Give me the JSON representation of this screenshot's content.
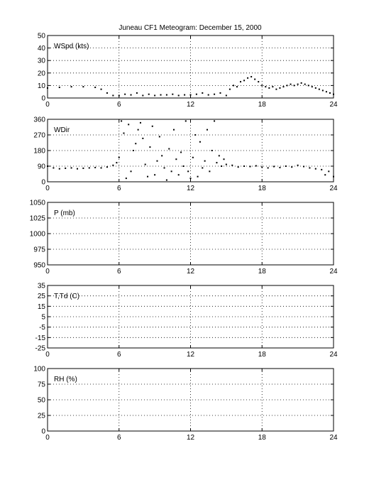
{
  "title": "Juneau CF1 Meteogram:   December 15, 2000",
  "chart_data": [
    {
      "type": "scatter",
      "label": "WSpd (kts)",
      "xlim": [
        0,
        24
      ],
      "ylim": [
        0,
        50
      ],
      "xticks": [
        "0",
        "6",
        "12",
        "18",
        "24"
      ],
      "yticks": [
        "0",
        "10",
        "20",
        "30",
        "40",
        "50"
      ],
      "grid": true,
      "x": [
        0,
        1,
        2,
        3,
        4,
        4.5,
        5,
        5.5,
        6,
        6.5,
        7,
        7.5,
        8,
        8.5,
        9,
        9.5,
        10,
        10.5,
        11,
        11.5,
        12,
        12.5,
        13,
        13.5,
        14,
        14.5,
        15,
        15.3,
        15.6,
        15.9,
        16.2,
        16.5,
        16.8,
        17.1,
        17.4,
        17.7,
        18,
        18.3,
        18.6,
        18.9,
        19.2,
        19.5,
        19.8,
        20.1,
        20.4,
        20.7,
        21,
        21.3,
        21.6,
        21.9,
        22.2,
        22.5,
        22.8,
        23.1,
        23.4,
        23.7,
        24
      ],
      "y": [
        8,
        8.5,
        9,
        9,
        8.5,
        7,
        4,
        2,
        2,
        3,
        2.5,
        4,
        2,
        3,
        2,
        2.5,
        2.5,
        3,
        2,
        2.5,
        2.5,
        3,
        4,
        2.5,
        3,
        4,
        2,
        7,
        10,
        9,
        13,
        14,
        16,
        17,
        15,
        13,
        10,
        9,
        8,
        9,
        7,
        8,
        9,
        10,
        11,
        10,
        11,
        12,
        11,
        10,
        9,
        8,
        7,
        6,
        5,
        4,
        3
      ]
    },
    {
      "type": "scatter",
      "label": "WDir",
      "xlim": [
        0,
        24
      ],
      "ylim": [
        0,
        360
      ],
      "xticks": [
        "0",
        "6",
        "12",
        "18",
        "24"
      ],
      "yticks": [
        "0",
        "90",
        "180",
        "270",
        "360"
      ],
      "grid": true,
      "x": [
        0,
        0.5,
        1,
        1.5,
        2,
        2.5,
        3,
        3.5,
        4,
        4.5,
        5,
        5.5,
        5.8,
        6,
        6.2,
        6.4,
        6.6,
        6.8,
        7,
        7.2,
        7.4,
        7.6,
        7.8,
        8,
        8.2,
        8.4,
        8.6,
        8.8,
        9,
        9.2,
        9.4,
        9.6,
        9.8,
        10,
        10.2,
        10.4,
        10.6,
        10.8,
        11,
        11.2,
        11.4,
        11.6,
        11.8,
        12,
        12.2,
        12.4,
        12.6,
        12.8,
        13,
        13.2,
        13.4,
        13.6,
        13.8,
        14,
        14.2,
        14.4,
        14.6,
        14.8,
        15,
        15.5,
        16,
        16.5,
        17,
        17.5,
        18,
        18.5,
        19,
        19.5,
        20,
        20.5,
        21,
        21.5,
        22,
        22.5,
        23,
        23.3,
        23.6,
        24
      ],
      "y": [
        90,
        80,
        75,
        78,
        80,
        75,
        78,
        80,
        82,
        80,
        85,
        95,
        110,
        140,
        350,
        280,
        20,
        330,
        60,
        180,
        220,
        300,
        340,
        250,
        100,
        30,
        200,
        320,
        40,
        120,
        260,
        150,
        80,
        10,
        190,
        60,
        300,
        130,
        40,
        170,
        90,
        350,
        60,
        20,
        140,
        270,
        30,
        230,
        80,
        120,
        300,
        60,
        180,
        350,
        110,
        150,
        90,
        130,
        100,
        95,
        85,
        90,
        88,
        92,
        85,
        80,
        88,
        82,
        90,
        85,
        95,
        88,
        80,
        75,
        70,
        40,
        60,
        30
      ]
    },
    {
      "type": "scatter",
      "label": "P (mb)",
      "xlim": [
        0,
        24
      ],
      "ylim": [
        950,
        1050
      ],
      "xticks": [
        "0",
        "6",
        "12",
        "18",
        "24"
      ],
      "yticks": [
        "950",
        "975",
        "1000",
        "1025",
        "1050"
      ],
      "grid": true,
      "x": [],
      "y": []
    },
    {
      "type": "scatter",
      "label": "T,Td (C)",
      "xlim": [
        0,
        24
      ],
      "ylim": [
        -25,
        35
      ],
      "xticks": [
        "0",
        "6",
        "12",
        "18",
        "24"
      ],
      "yticks": [
        "-25",
        "-15",
        "-5",
        "5",
        "15",
        "25",
        "35"
      ],
      "grid": true,
      "x": [],
      "y": []
    },
    {
      "type": "scatter",
      "label": "RH (%)",
      "xlim": [
        0,
        24
      ],
      "ylim": [
        0,
        100
      ],
      "xticks": [
        "0",
        "6",
        "12",
        "18",
        "24"
      ],
      "yticks": [
        "0",
        "25",
        "50",
        "75",
        "100"
      ],
      "grid": true,
      "x": [],
      "y": []
    }
  ]
}
